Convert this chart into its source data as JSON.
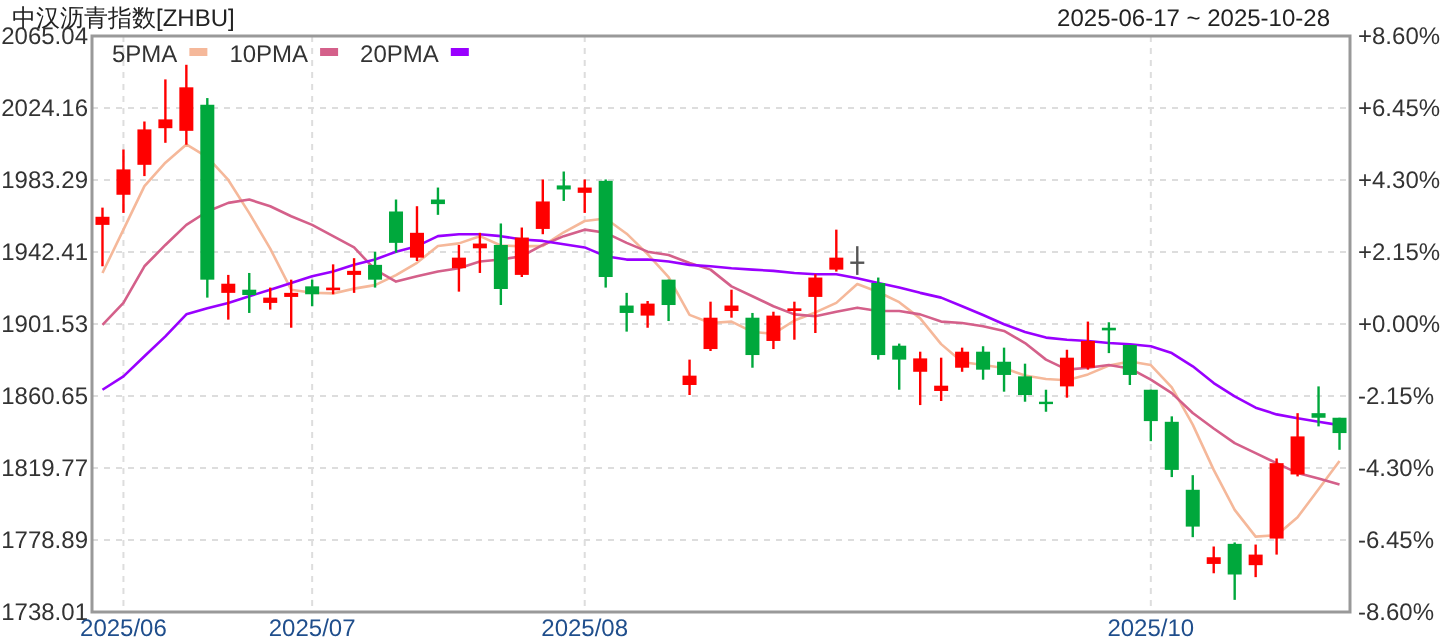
{
  "chart_data": {
    "type": "candlestick",
    "title": "中汉沥青指数[ZHBU]",
    "subtitle": "2025-06-17 ~ 2025-10-28",
    "categories": [
      null,
      "2025/06",
      null,
      null,
      null,
      null,
      null,
      null,
      null,
      null,
      "2025/07",
      null,
      null,
      null,
      null,
      null,
      null,
      null,
      null,
      null,
      null,
      null,
      null,
      "2025/08",
      null,
      null,
      null,
      null,
      null,
      null,
      null,
      null,
      null,
      null,
      null,
      null,
      null,
      null,
      null,
      null,
      null,
      null,
      null,
      null,
      null,
      null,
      null,
      null,
      null,
      null,
      "2025/10",
      null,
      null,
      null,
      null,
      null,
      null,
      null,
      null,
      null
    ],
    "ohlc": [
      [
        1957.8,
        1967.6,
        1934.3,
        1962.4
      ],
      [
        1974.9,
        2000.6,
        1964.6,
        1989.3
      ],
      [
        1991.9,
        2016.5,
        1985.5,
        2012.0
      ],
      [
        2012.7,
        2040.4,
        2004.4,
        2017.7
      ],
      [
        2011.2,
        2048.7,
        2003.3,
        2035.9
      ],
      [
        2026.0,
        2029.8,
        1916.5,
        1926.7
      ],
      [
        1919.2,
        1929.4,
        1904.0,
        1924.4
      ],
      [
        1921.0,
        1930.5,
        1907.8,
        1918.0
      ],
      [
        1913.5,
        1922.2,
        1909.7,
        1916.5
      ],
      [
        1916.9,
        1926.7,
        1899.4,
        1919.2
      ],
      [
        1922.9,
        1926.7,
        1911.6,
        1918.4
      ],
      [
        1920.7,
        1935.4,
        1918.4,
        1922.2
      ],
      [
        1929.4,
        1938.9,
        1919.2,
        1931.7
      ],
      [
        1935.1,
        1942.6,
        1922.2,
        1926.7
      ],
      [
        1965.4,
        1972.2,
        1942.0,
        1947.6
      ],
      [
        1939.2,
        1968.4,
        1937.3,
        1953.3
      ],
      [
        1972.2,
        1979.0,
        1963.5,
        1969.6
      ],
      [
        1933.2,
        1946.4,
        1919.9,
        1939.2
      ],
      [
        1944.5,
        1953.3,
        1930.5,
        1947.2
      ],
      [
        1946.4,
        1958.6,
        1912.3,
        1921.4
      ],
      [
        1929.4,
        1956.3,
        1928.2,
        1950.6
      ],
      [
        1955.5,
        1983.6,
        1952.5,
        1971.1
      ],
      [
        1980.2,
        1988.1,
        1971.4,
        1977.9
      ],
      [
        1976.0,
        1983.6,
        1964.6,
        1979.0
      ],
      [
        1982.8,
        1983.6,
        1922.2,
        1928.2
      ],
      [
        1912.0,
        1919.2,
        1897.2,
        1907.8
      ],
      [
        1906.3,
        1914.6,
        1899.4,
        1913.1
      ],
      [
        1926.7,
        1926.7,
        1903.2,
        1912.3
      ],
      [
        1866.9,
        1881.3,
        1861.2,
        1872.2
      ],
      [
        1887.3,
        1914.2,
        1886.2,
        1905.1
      ],
      [
        1908.9,
        1921.0,
        1905.1,
        1912.0
      ],
      [
        1905.1,
        1907.8,
        1876.7,
        1883.9
      ],
      [
        1891.9,
        1908.5,
        1887.3,
        1906.3
      ],
      [
        1908.9,
        1914.2,
        1892.6,
        1910.4
      ],
      [
        1916.9,
        1929.8,
        1896.4,
        1927.9
      ],
      [
        1932.4,
        1955.1,
        1931.3,
        1939.2
      ],
      [
        1937.0,
        1945.7,
        1929.4,
        1937.0
      ],
      [
        1924.8,
        1927.9,
        1881.3,
        1883.9
      ],
      [
        1889.2,
        1890.4,
        1864.2,
        1881.3
      ],
      [
        1874.4,
        1885.8,
        1855.5,
        1882.0
      ],
      [
        1863.5,
        1882.4,
        1857.8,
        1866.5
      ],
      [
        1876.7,
        1888.1,
        1874.4,
        1885.8
      ],
      [
        1885.8,
        1888.9,
        1869.9,
        1875.6
      ],
      [
        1880.1,
        1888.1,
        1863.1,
        1872.6
      ],
      [
        1871.8,
        1879.0,
        1857.4,
        1861.2
      ],
      [
        1857.4,
        1864.2,
        1851.7,
        1856.3
      ],
      [
        1866.1,
        1886.9,
        1859.7,
        1882.4
      ],
      [
        1876.7,
        1902.9,
        1875.6,
        1891.9
      ],
      [
        1899.4,
        1902.5,
        1885.0,
        1897.9
      ],
      [
        1889.6,
        1889.6,
        1866.9,
        1872.6
      ],
      [
        1864.2,
        1864.2,
        1835.0,
        1846.4
      ],
      [
        1846.0,
        1849.1,
        1814.6,
        1818.7
      ],
      [
        1807.4,
        1815.7,
        1780.5,
        1786.5
      ],
      [
        1765.3,
        1775.2,
        1760.0,
        1769.1
      ],
      [
        1776.7,
        1777.5,
        1744.9,
        1759.3
      ],
      [
        1764.6,
        1776.3,
        1757.8,
        1770.6
      ],
      [
        1779.7,
        1825.2,
        1770.6,
        1822.5
      ],
      [
        1816.1,
        1850.9,
        1815.0,
        1837.7
      ],
      [
        1850.9,
        1866.1,
        1843.4,
        1848.3
      ],
      [
        1848.3,
        1848.3,
        1830.1,
        1839.6
      ]
    ],
    "colors": [
      "#ff0000",
      "#ff0000",
      "#ff0000",
      "#ff0000",
      "#ff0000",
      "#00a83c",
      "#ff0000",
      "#00a83c",
      "#ff0000",
      "#ff0000",
      "#00a83c",
      "#ff0000",
      "#ff0000",
      "#00a83c",
      "#00a83c",
      "#ff0000",
      "#00a83c",
      "#ff0000",
      "#ff0000",
      "#00a83c",
      "#ff0000",
      "#ff0000",
      "#00a83c",
      "#ff0000",
      "#00a83c",
      "#00a83c",
      "#ff0000",
      "#00a83c",
      "#ff0000",
      "#ff0000",
      "#ff0000",
      "#00a83c",
      "#ff0000",
      "#ff0000",
      "#ff0000",
      "#ff0000",
      "#555555",
      "#00a83c",
      "#00a83c",
      "#ff0000",
      "#ff0000",
      "#ff0000",
      "#00a83c",
      "#00a83c",
      "#00a83c",
      "#00a83c",
      "#ff0000",
      "#ff0000",
      "#00a83c",
      "#00a83c",
      "#00a83c",
      "#00a83c",
      "#00a83c",
      "#ff0000",
      "#00a83c",
      "#ff0000",
      "#ff0000",
      "#ff0000",
      "#00a83c",
      "#00a83c"
    ],
    "series": [
      {
        "name": "5PMA",
        "type": "line",
        "color": "#f5b89a",
        "values": [
          1930.5,
          1955.1,
          1979.8,
          1993.1,
          2003.5,
          1996.3,
          1983.3,
          1964.5,
          1944.3,
          1921.0,
          1919.3,
          1918.9,
          1921.6,
          1923.6,
          1929.3,
          1936.3,
          1945.8,
          1947.3,
          1951.4,
          1946.1,
          1945.6,
          1945.9,
          1953.6,
          1960.0,
          1961.4,
          1952.8,
          1941.2,
          1928.1,
          1906.7,
          1902.1,
          1902.9,
          1897.1,
          1895.9,
          1903.5,
          1908.1,
          1913.5,
          1924.2,
          1919.7,
          1913.9,
          1904.7,
          1890.1,
          1879.9,
          1878.2,
          1876.5,
          1872.3,
          1870.3,
          1869.6,
          1872.9,
          1877.9,
          1880.2,
          1878.2,
          1865.5,
          1844.4,
          1818.7,
          1796.0,
          1780.8,
          1781.6,
          1791.8,
          1807.7,
          1823.7
        ]
      },
      {
        "name": "10PMA",
        "type": "line",
        "color": "#d4608a",
        "values": [
          1901.0,
          1913.5,
          1934.3,
          1946.4,
          1957.8,
          1965.4,
          1970.3,
          1972.2,
          1968.4,
          1962.7,
          1957.8,
          1951.4,
          1945.0,
          1932.4,
          1925.6,
          1928.6,
          1931.3,
          1933.2,
          1937.0,
          1938.1,
          1940.0,
          1946.4,
          1951.4,
          1955.1,
          1953.3,
          1947.6,
          1942.6,
          1940.7,
          1936.2,
          1932.4,
          1922.9,
          1917.3,
          1911.6,
          1907.0,
          1905.9,
          1908.5,
          1910.8,
          1908.9,
          1908.9,
          1907.0,
          1902.9,
          1902.1,
          1900.2,
          1897.6,
          1890.7,
          1881.3,
          1875.6,
          1876.7,
          1878.2,
          1876.3,
          1869.9,
          1862.3,
          1851.0,
          1842.2,
          1833.9,
          1828.2,
          1822.5,
          1816.9,
          1813.8,
          1810.4
        ]
      },
      {
        "name": "20PMA",
        "type": "line",
        "color": "#9900ff",
        "values": [
          1864.2,
          1871.8,
          1883.2,
          1894.5,
          1907.0,
          1910.4,
          1913.5,
          1917.3,
          1921.0,
          1924.8,
          1928.6,
          1931.3,
          1935.1,
          1938.1,
          1942.6,
          1945.7,
          1951.4,
          1952.5,
          1952.5,
          1951.4,
          1949.5,
          1948.7,
          1946.8,
          1945.0,
          1940.0,
          1938.1,
          1938.1,
          1937.0,
          1935.1,
          1934.3,
          1933.2,
          1932.4,
          1931.7,
          1930.5,
          1929.8,
          1929.8,
          1927.5,
          1924.8,
          1922.2,
          1919.2,
          1916.5,
          1911.6,
          1906.6,
          1901.4,
          1897.0,
          1893.8,
          1892.6,
          1891.9,
          1890.7,
          1890.0,
          1888.9,
          1885.0,
          1877.5,
          1868.0,
          1860.4,
          1854.0,
          1850.2,
          1848.0,
          1846.0,
          1844.1
        ]
      }
    ],
    "ylim": [
      1738.01,
      2065.04
    ],
    "yticks": [
      1738.01,
      1778.89,
      1819.77,
      1860.65,
      1901.53,
      1942.41,
      1983.29,
      2024.16,
      2065.04
    ],
    "y2lim": [
      -8.6,
      8.6
    ],
    "y2ticks": [
      {
        "value": -8.6,
        "label": "-8.60%"
      },
      {
        "value": -6.45,
        "label": "-6.45%"
      },
      {
        "value": -4.3,
        "label": "-4.30%"
      },
      {
        "value": -2.15,
        "label": "-2.15%"
      },
      {
        "value": 0,
        "label": "+0.00%"
      },
      {
        "value": 2.15,
        "label": "+2.15%"
      },
      {
        "value": 4.3,
        "label": "+4.30%"
      },
      {
        "value": 6.45,
        "label": "+6.45%"
      },
      {
        "value": 8.6,
        "label": "+8.60%"
      }
    ],
    "grid": true,
    "legend": "top left"
  }
}
